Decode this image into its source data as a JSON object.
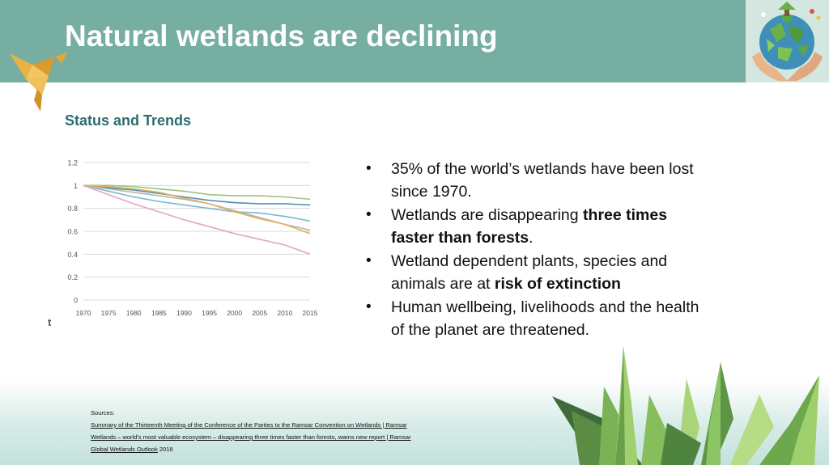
{
  "slide": {
    "title": "Natural wetlands are declining",
    "subtitle": "Status and Trends"
  },
  "bullets": {
    "b1": "35% of the world’s wetlands have been lost since 1970.",
    "b2_pre": "Wetlands are disappearing ",
    "b2_bold": "three times faster than forests",
    "b2_post": ".",
    "b3_pre": "Wetland dependent plants, species and animals are at ",
    "b3_bold": "risk of extinction",
    "b4": "Human wellbeing, livelihoods and the health of the planet are threatened.",
    "marker": "•"
  },
  "sources": {
    "heading": "Sources:",
    "link1": "Summary of the Thirteenth Meeting of the Conference of the Parties to the Ramsar Convention on Wetlands | Ramsar",
    "link2": "Wetlands – world’s most valuable ecosystem – disappearing three times faster than forests, warns new report | Ramsar",
    "link3": "Global Wetlands Outlook",
    "link3_suffix": " 2018"
  },
  "chart_data": {
    "type": "line",
    "x": [
      1970,
      1975,
      1980,
      1985,
      1990,
      1995,
      2000,
      2005,
      2010,
      2015
    ],
    "x_ticks": [
      "1970",
      "1975",
      "1980",
      "1985",
      "1990",
      "1995",
      "2000",
      "2005",
      "2010",
      "2015"
    ],
    "y_ticks": [
      "0",
      "0.2",
      "0.4",
      "0.6",
      "0.8",
      "1",
      "1.2"
    ],
    "ylim": [
      0,
      1.2
    ],
    "grid": true,
    "corner_label": "t",
    "series": [
      {
        "color": "#9dc183",
        "values": [
          1.0,
          1.0,
          0.99,
          0.97,
          0.95,
          0.92,
          0.91,
          0.91,
          0.9,
          0.88
        ]
      },
      {
        "color": "#4a8cb0",
        "values": [
          1.0,
          0.98,
          0.96,
          0.93,
          0.9,
          0.87,
          0.85,
          0.84,
          0.84,
          0.83
        ]
      },
      {
        "color": "#7bb8cf",
        "values": [
          1.0,
          0.95,
          0.9,
          0.86,
          0.83,
          0.8,
          0.77,
          0.76,
          0.73,
          0.69
        ]
      },
      {
        "color": "#b0b8a5",
        "values": [
          1.0,
          0.97,
          0.94,
          0.91,
          0.88,
          0.84,
          0.78,
          0.72,
          0.66,
          0.61
        ]
      },
      {
        "color": "#e0b060",
        "values": [
          1.0,
          0.99,
          0.97,
          0.94,
          0.89,
          0.84,
          0.77,
          0.71,
          0.66,
          0.58
        ]
      },
      {
        "color": "#e4a3c8",
        "values": [
          1.0,
          0.92,
          0.84,
          0.77,
          0.7,
          0.64,
          0.58,
          0.53,
          0.48,
          0.4
        ]
      }
    ],
    "colors": {
      "header": "#76aea2",
      "subtitle": "#2c6d6e"
    }
  }
}
